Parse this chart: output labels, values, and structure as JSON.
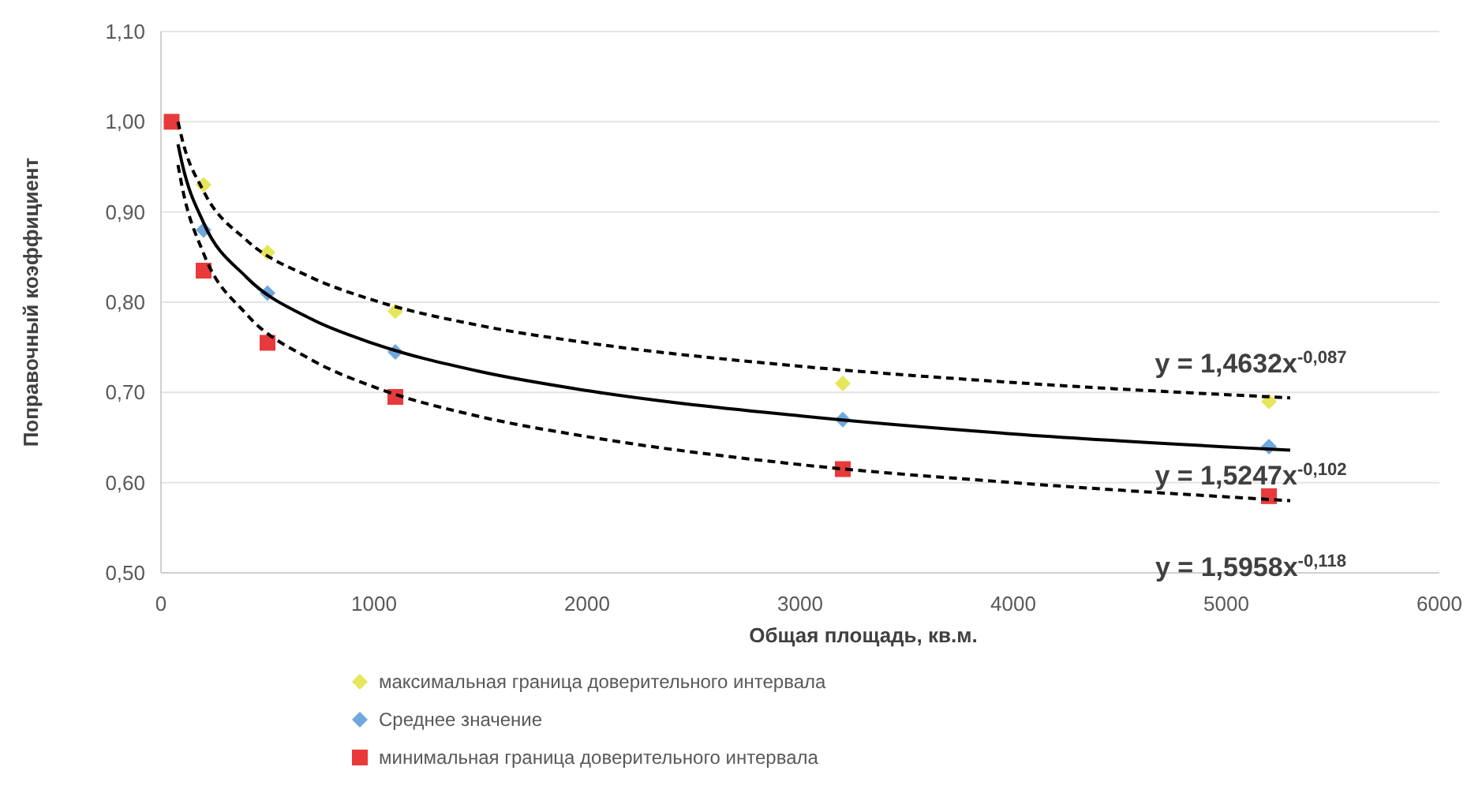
{
  "chart_data": {
    "type": "scatter",
    "xlabel": "Общая площадь, кв.м.",
    "ylabel": "Поправочный коэффициент",
    "xlim": [
      0,
      6000
    ],
    "xticks": [
      0,
      1000,
      2000,
      3000,
      4000,
      5000,
      6000
    ],
    "ylim": [
      0.5,
      1.1
    ],
    "yticks": [
      {
        "value": 0.5,
        "label": "0,50"
      },
      {
        "value": 0.6,
        "label": "0,60"
      },
      {
        "value": 0.7,
        "label": "0,70"
      },
      {
        "value": 0.8,
        "label": "0,80"
      },
      {
        "value": 0.9,
        "label": "0,90"
      },
      {
        "value": 1.0,
        "label": "1,00"
      },
      {
        "value": 1.1,
        "label": "1,10"
      }
    ],
    "grid": "y",
    "legend": "bottom",
    "series": [
      {
        "name": "максимальная граница доверительного интервала",
        "marker": "diamond",
        "color": "#e6e65a",
        "x": [
          200,
          500,
          1100,
          3200,
          5200
        ],
        "values": [
          0.93,
          0.855,
          0.79,
          0.71,
          0.69
        ]
      },
      {
        "name": "Среднее значение",
        "marker": "diamond",
        "color": "#6fa8dc",
        "x": [
          200,
          500,
          1100,
          3200,
          5200
        ],
        "values": [
          0.88,
          0.81,
          0.745,
          0.67,
          0.64
        ]
      },
      {
        "name": "минимальная граница доверительного интервала",
        "marker": "square",
        "color": "#e83a3a",
        "x": [
          50,
          200,
          500,
          1100,
          3200,
          5200
        ],
        "values": [
          1.0,
          0.835,
          0.755,
          0.695,
          0.615,
          0.585
        ]
      },
      {
        "type": "line",
        "line_style": "dashed",
        "marker": "none",
        "color": "#000000",
        "x": [
          80,
          100,
          200,
          400,
          700,
          1000,
          1500,
          2000,
          3000,
          4000,
          5300
        ],
        "values": [
          1.0,
          0.98,
          0.923,
          0.869,
          0.828,
          0.802,
          0.774,
          0.755,
          0.729,
          0.711,
          0.694
        ]
      },
      {
        "type": "line",
        "line_style": "solid",
        "marker": "none",
        "color": "#000000",
        "x": [
          80,
          100,
          200,
          400,
          700,
          1000,
          1500,
          2000,
          3000,
          4000,
          5300
        ],
        "values": [
          0.975,
          0.953,
          0.888,
          0.828,
          0.782,
          0.754,
          0.723,
          0.702,
          0.674,
          0.654,
          0.636
        ]
      },
      {
        "type": "line",
        "line_style": "dashed",
        "marker": "none",
        "color": "#000000",
        "x": [
          80,
          100,
          200,
          400,
          700,
          1000,
          1500,
          2000,
          3000,
          4000,
          5300
        ],
        "values": [
          0.952,
          0.927,
          0.854,
          0.787,
          0.737,
          0.706,
          0.673,
          0.651,
          0.62,
          0.6,
          0.58
        ]
      }
    ],
    "annotations": [
      "y = 1,4632x$^{-0,087}$",
      "y = 1,5247x$^{-0,102}$",
      "y = 1,5958x$^{-0,118}$"
    ]
  }
}
